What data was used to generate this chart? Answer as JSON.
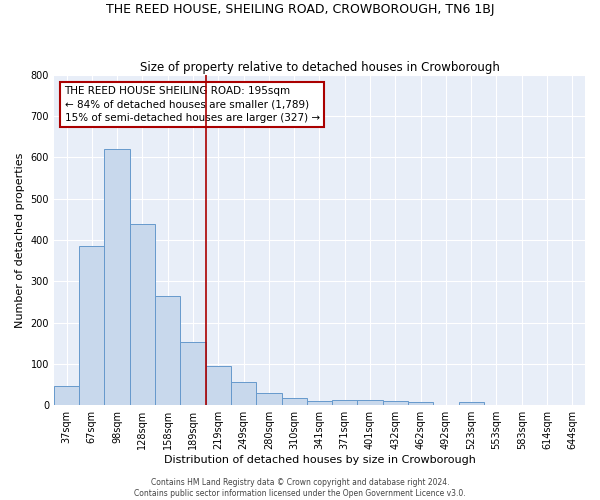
{
  "title": "THE REED HOUSE, SHEILING ROAD, CROWBOROUGH, TN6 1BJ",
  "subtitle": "Size of property relative to detached houses in Crowborough",
  "xlabel": "Distribution of detached houses by size in Crowborough",
  "ylabel": "Number of detached properties",
  "bar_labels": [
    "37sqm",
    "67sqm",
    "98sqm",
    "128sqm",
    "158sqm",
    "189sqm",
    "219sqm",
    "249sqm",
    "280sqm",
    "310sqm",
    "341sqm",
    "371sqm",
    "401sqm",
    "432sqm",
    "462sqm",
    "492sqm",
    "523sqm",
    "553sqm",
    "583sqm",
    "614sqm",
    "644sqm"
  ],
  "bar_values": [
    47,
    385,
    621,
    438,
    265,
    152,
    95,
    55,
    30,
    17,
    10,
    12,
    12,
    10,
    7,
    0,
    8,
    0,
    0,
    0,
    0
  ],
  "bar_color": "#c8d8ec",
  "bar_edge_color": "#6699cc",
  "vertical_line_x": 5.5,
  "vertical_line_color": "#aa0000",
  "annotation_text": "THE REED HOUSE SHEILING ROAD: 195sqm\n← 84% of detached houses are smaller (1,789)\n15% of semi-detached houses are larger (327) →",
  "annotation_box_facecolor": "#ffffff",
  "annotation_box_edgecolor": "#aa0000",
  "ylim": [
    0,
    800
  ],
  "yticks": [
    0,
    100,
    200,
    300,
    400,
    500,
    600,
    700,
    800
  ],
  "footer_line1": "Contains HM Land Registry data © Crown copyright and database right 2024.",
  "footer_line2": "Contains public sector information licensed under the Open Government Licence v3.0.",
  "plot_bg_color": "#e8eef8",
  "fig_bg_color": "#ffffff",
  "title_fontsize": 9,
  "subtitle_fontsize": 8.5,
  "ylabel_fontsize": 8,
  "xlabel_fontsize": 8,
  "tick_fontsize": 7,
  "annotation_fontsize": 7.5,
  "footer_fontsize": 5.5
}
